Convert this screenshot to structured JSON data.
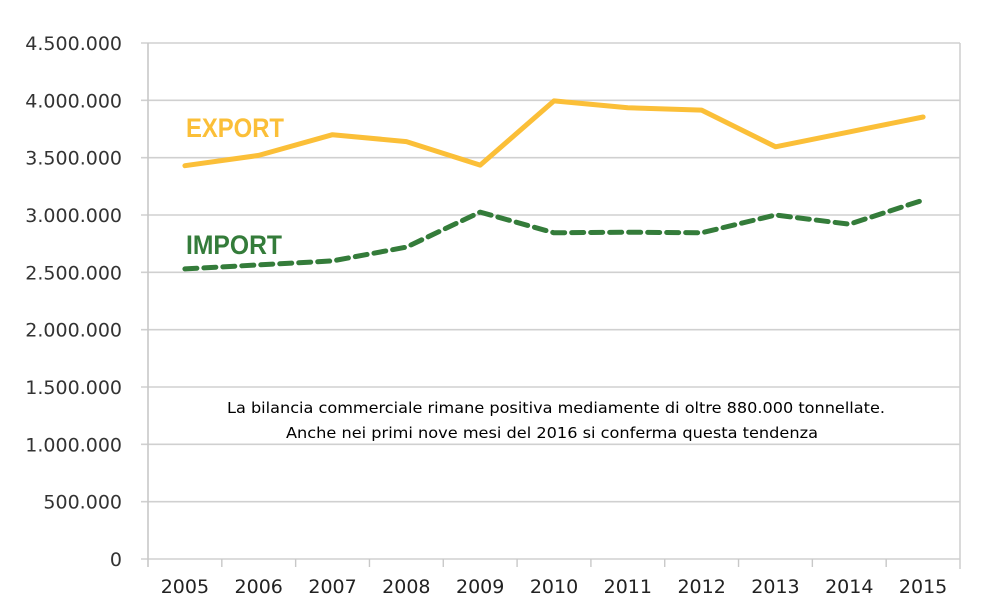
{
  "chart_data": {
    "type": "line",
    "title": "",
    "xlabel": "",
    "ylabel": "",
    "categories": [
      "2005",
      "2006",
      "2007",
      "2008",
      "2009",
      "2010",
      "2011",
      "2012",
      "2013",
      "2014",
      "2015"
    ],
    "ylim": [
      0,
      4500000
    ],
    "y_ticks": [
      0,
      500000,
      1000000,
      1500000,
      2000000,
      2500000,
      3000000,
      3500000,
      4000000,
      4500000
    ],
    "y_tick_labels": [
      "0",
      "500.000",
      "1.000.000",
      "1.500.000",
      "2.000.000",
      "2.500.000",
      "3.000.000",
      "3.500.000",
      "4.000.000",
      "4.500.000"
    ],
    "grid": true,
    "series": [
      {
        "name": "EXPORT",
        "color": "#FBBF38",
        "style": "solid",
        "values": [
          3430000,
          3520000,
          3700000,
          3640000,
          3435000,
          3995000,
          3935000,
          3915000,
          3595000,
          3725000,
          3855000
        ]
      },
      {
        "name": "IMPORT",
        "color": "#347C3A",
        "style": "dashed",
        "values": [
          2530000,
          2565000,
          2600000,
          2720000,
          3025000,
          2845000,
          2850000,
          2845000,
          3000000,
          2920000,
          3130000
        ]
      }
    ],
    "annotation": {
      "lines": [
        "La bilancia commerciale rimane positiva mediamente di oltre 880.000 tonnellate.",
        "Anche  nei primi nove mesi del 2016 si conferma questa tendenza"
      ]
    }
  }
}
